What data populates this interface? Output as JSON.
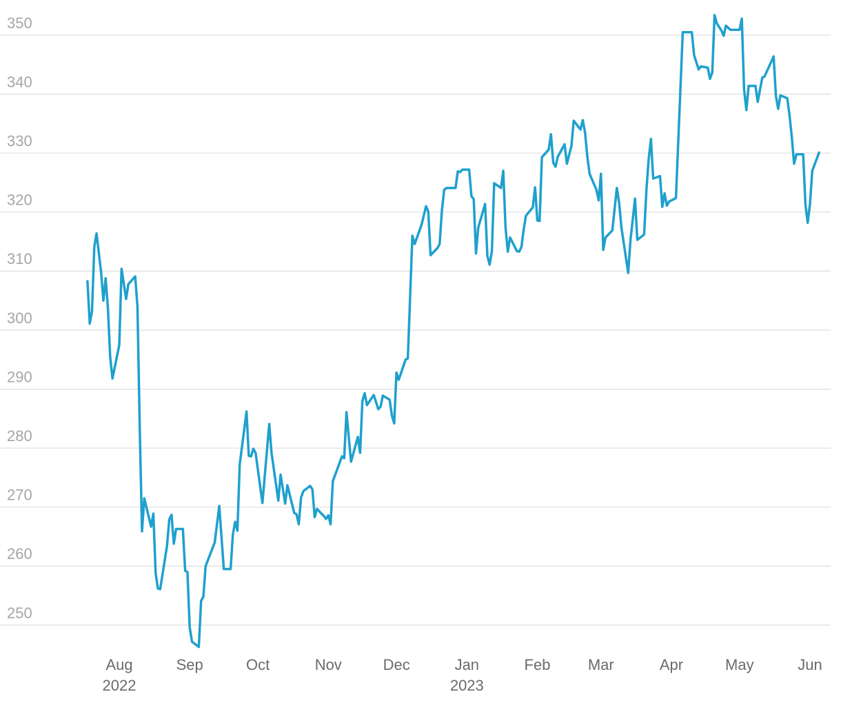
{
  "chart_data": {
    "type": "line",
    "x": [
      -14,
      -13,
      -12,
      -11,
      -10,
      -8,
      -7,
      -6,
      -5,
      -4,
      -3,
      0,
      1,
      3,
      4,
      7,
      8,
      9,
      10,
      11,
      14,
      15,
      16,
      17,
      18,
      21,
      22,
      23,
      24,
      25,
      26,
      28,
      29,
      30,
      31,
      32,
      35,
      36,
      37,
      38,
      42,
      44,
      46,
      49,
      50,
      51,
      52,
      53,
      56,
      57,
      58,
      59,
      60,
      63,
      66,
      67,
      70,
      71,
      73,
      74,
      77,
      78,
      79,
      80,
      81,
      84,
      85,
      86,
      87,
      90,
      91,
      92,
      93,
      94,
      98,
      99,
      100,
      102,
      105,
      106,
      107,
      108,
      109,
      112,
      114,
      115,
      116,
      119,
      120,
      121,
      122,
      123,
      126,
      127,
      129,
      130,
      133,
      135,
      136,
      137,
      140,
      141,
      142,
      143,
      144,
      148,
      149,
      150,
      151,
      154,
      155,
      156,
      157,
      158,
      161,
      162,
      163,
      164,
      165,
      168,
      169,
      170,
      171,
      172,
      175,
      176,
      177,
      178,
      179,
      182,
      183,
      184,
      185,
      186,
      189,
      190,
      191,
      192,
      193,
      196,
      197,
      199,
      200,
      203,
      204,
      205,
      206,
      207,
      210,
      211,
      212,
      213,
      214,
      217,
      219,
      220,
      221,
      224,
      225,
      227,
      228,
      231,
      232,
      233,
      234,
      235,
      238,
      239,
      240,
      241,
      242,
      245,
      248,
      252,
      253,
      254,
      255,
      256,
      259,
      260,
      261,
      262,
      263,
      265,
      266,
      267,
      269,
      271,
      273,
      274,
      275,
      276,
      277,
      280,
      281,
      283,
      284,
      288,
      289,
      290,
      291,
      294,
      295,
      296,
      297,
      298,
      301,
      302,
      303,
      304,
      305,
      308
    ],
    "values": [
      308.3,
      301.1,
      303.2,
      314.1,
      316.4,
      309.8,
      305.0,
      308.8,
      303.7,
      295.4,
      291.8,
      297.5,
      310.4,
      305.3,
      307.8,
      309.1,
      304.0,
      283.5,
      265.9,
      271.5,
      266.7,
      268.9,
      258.8,
      256.2,
      256.1,
      263.4,
      267.9,
      268.7,
      263.8,
      266.3,
      266.3,
      266.3,
      259.2,
      259.0,
      249.6,
      247.2,
      246.3,
      254.1,
      254.8,
      260.0,
      264.0,
      270.2,
      259.5,
      259.5,
      265.4,
      267.5,
      266.0,
      277.2,
      286.2,
      278.7,
      278.6,
      279.9,
      279.2,
      270.7,
      284.1,
      279.2,
      271.1,
      275.5,
      270.6,
      273.7,
      269.0,
      268.8,
      267.1,
      271.6,
      272.7,
      273.6,
      273.0,
      268.3,
      269.7,
      268.5,
      268.0,
      268.6,
      267.1,
      274.4,
      278.6,
      278.3,
      286.1,
      277.7,
      281.9,
      279.2,
      288.0,
      289.3,
      287.3,
      289.0,
      286.6,
      287.0,
      288.9,
      288.2,
      285.5,
      284.2,
      292.8,
      291.6,
      295.0,
      295.2,
      316.0,
      314.6,
      317.8,
      321.0,
      320.1,
      312.7,
      313.9,
      314.6,
      320.3,
      323.8,
      324.1,
      324.1,
      326.9,
      326.8,
      327.2,
      327.2,
      322.7,
      322.2,
      313.0,
      317.4,
      321.4,
      312.6,
      311.1,
      313.4,
      324.9,
      324.1,
      327.0,
      317.4,
      313.3,
      315.7,
      313.4,
      313.3,
      314.1,
      317.1,
      319.4,
      320.8,
      324.2,
      318.6,
      318.5,
      329.3,
      330.6,
      333.2,
      328.4,
      327.7,
      329.4,
      331.5,
      328.2,
      331.2,
      335.5,
      334.0,
      335.6,
      333.5,
      329.4,
      326.5,
      323.8,
      322.0,
      326.5,
      313.6,
      315.7,
      316.9,
      324.1,
      321.6,
      317.4,
      309.7,
      315.3,
      322.3,
      315.3,
      316.2,
      323.7,
      329.0,
      332.4,
      325.7,
      326.1,
      320.9,
      323.2,
      321.1,
      321.8,
      322.4,
      350.5,
      350.5,
      346.6,
      345.4,
      344.2,
      344.7,
      344.5,
      342.6,
      343.7,
      353.4,
      352.0,
      350.8,
      349.9,
      351.6,
      350.9,
      350.9,
      350.9,
      352.8,
      340.8,
      337.3,
      341.4,
      341.4,
      338.7,
      342.8,
      343.0,
      346.4,
      339.7,
      337.5,
      339.8,
      339.3,
      336.4,
      332.7,
      328.2,
      329.8,
      329.8,
      321.3,
      318.2,
      321.4,
      327.0,
      330.1
    ],
    "color": "#1fa0cd",
    "xlim": [
      -52.5,
      313.1
    ],
    "xticks": [
      {
        "value": 0,
        "label": "Aug"
      },
      {
        "value": 31,
        "label": "Sep"
      },
      {
        "value": 61,
        "label": "Oct"
      },
      {
        "value": 92,
        "label": "Nov"
      },
      {
        "value": 122,
        "label": "Dec"
      },
      {
        "value": 153,
        "label": "Jan"
      },
      {
        "value": 184,
        "label": "Feb"
      },
      {
        "value": 212,
        "label": "Mar"
      },
      {
        "value": 243,
        "label": "Apr"
      },
      {
        "value": 273,
        "label": "May"
      },
      {
        "value": 304,
        "label": "Jun"
      }
    ],
    "xtick_years": [
      {
        "value": 0,
        "label": "2022"
      },
      {
        "value": 153,
        "label": "2023"
      }
    ],
    "ylim": [
      245.5,
      354.5
    ],
    "yticks": [
      250,
      260,
      270,
      280,
      290,
      300,
      310,
      320,
      330,
      340,
      350
    ],
    "grid": true
  }
}
